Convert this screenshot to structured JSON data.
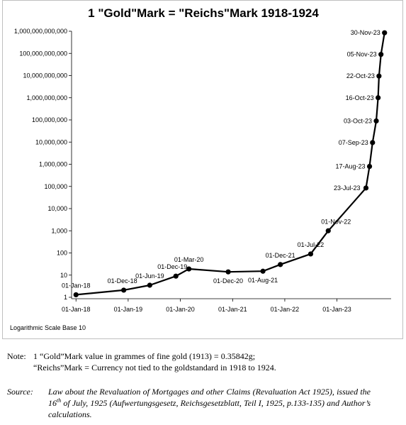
{
  "chart_data": {
    "type": "line",
    "title": "1 \"Gold\"Mark = \"Reichs\"Mark 1918-1924",
    "yscale": "log",
    "ylim": [
      1,
      1000000000000
    ],
    "yticks": [
      1,
      10,
      100,
      1000,
      10000,
      100000,
      1000000,
      10000000,
      100000000,
      1000000000,
      10000000000,
      100000000000,
      1000000000000
    ],
    "ytick_labels": [
      "1",
      "10",
      "100",
      "1,000",
      "10,000",
      "100,000",
      "1,000,000",
      "10,000,000",
      "100,000,000",
      "1,000,000,000",
      "10,000,000,000",
      "100,000,000,000",
      "1,000,000,000,000"
    ],
    "xlim": [
      "1917-12-01",
      "1924-01-15"
    ],
    "xticks": [
      "1918-01-01",
      "1919-01-01",
      "1920-01-01",
      "1921-01-01",
      "1922-01-01",
      "1923-01-01"
    ],
    "xtick_labels": [
      "01-Jan-18",
      "01-Jan-19",
      "01-Jan-20",
      "01-Jan-21",
      "01-Jan-22",
      "01-Jan-23"
    ],
    "grid": false,
    "legend": false,
    "series": [
      {
        "color": "#000000",
        "points": [
          {
            "x": "1918-01-01",
            "y": 1.3,
            "label": "01-Jan-18"
          },
          {
            "x": "1918-12-01",
            "y": 2.1,
            "label": "01-Dec-18"
          },
          {
            "x": "1919-06-01",
            "y": 3.5,
            "label": "01-Jun-19"
          },
          {
            "x": "1919-12-01",
            "y": 9,
            "label": "01-Dec-19"
          },
          {
            "x": "1920-03-01",
            "y": 19,
            "label": "01-Mar-20"
          },
          {
            "x": "1920-12-01",
            "y": 14,
            "label": "01-Dec-20"
          },
          {
            "x": "1921-08-01",
            "y": 15,
            "label": "01-Aug-21"
          },
          {
            "x": "1921-12-01",
            "y": 30,
            "label": "01-Dec-21"
          },
          {
            "x": "1922-07-01",
            "y": 90,
            "label": "01-Jul-22"
          },
          {
            "x": "1922-11-01",
            "y": 1000,
            "label": "01-Nov-22"
          },
          {
            "x": "1923-07-23",
            "y": 85000,
            "label": "23-Jul-23"
          },
          {
            "x": "1923-08-17",
            "y": 800000,
            "label": "17-Aug-23"
          },
          {
            "x": "1923-09-07",
            "y": 9500000,
            "label": "07-Sep-23"
          },
          {
            "x": "1923-10-03",
            "y": 90000000,
            "label": "03-Oct-23"
          },
          {
            "x": "1923-10-16",
            "y": 1000000000,
            "label": "16-Oct-23"
          },
          {
            "x": "1923-10-22",
            "y": 9500000000,
            "label": "22-Oct-23"
          },
          {
            "x": "1923-11-05",
            "y": 90000000000,
            "label": "05-Nov-23"
          },
          {
            "x": "1923-11-30",
            "y": 850000000000,
            "label": "30-Nov-23"
          }
        ]
      }
    ],
    "annotation": "Logarithmic Scale Base 10"
  },
  "note": {
    "label": "Note:",
    "line1": "1 “Gold”Mark value in grammes of fine gold (1913) = 0.35842g;",
    "line2": "“Reichs”Mark = Currency not tied to the goldstandard in 1918 to 1924."
  },
  "source": {
    "label": "Source:",
    "text_part1": "Law about the Revaluation of Mortgages and other Claims (Revaluation Act 1925), issued the 16",
    "sup": "th",
    "text_part2": " of July, 1925 (Aufwertungsgesetz, Reichsgesetzblatt, Teil I, 1925, p.133-135) and Author’s calculations."
  }
}
